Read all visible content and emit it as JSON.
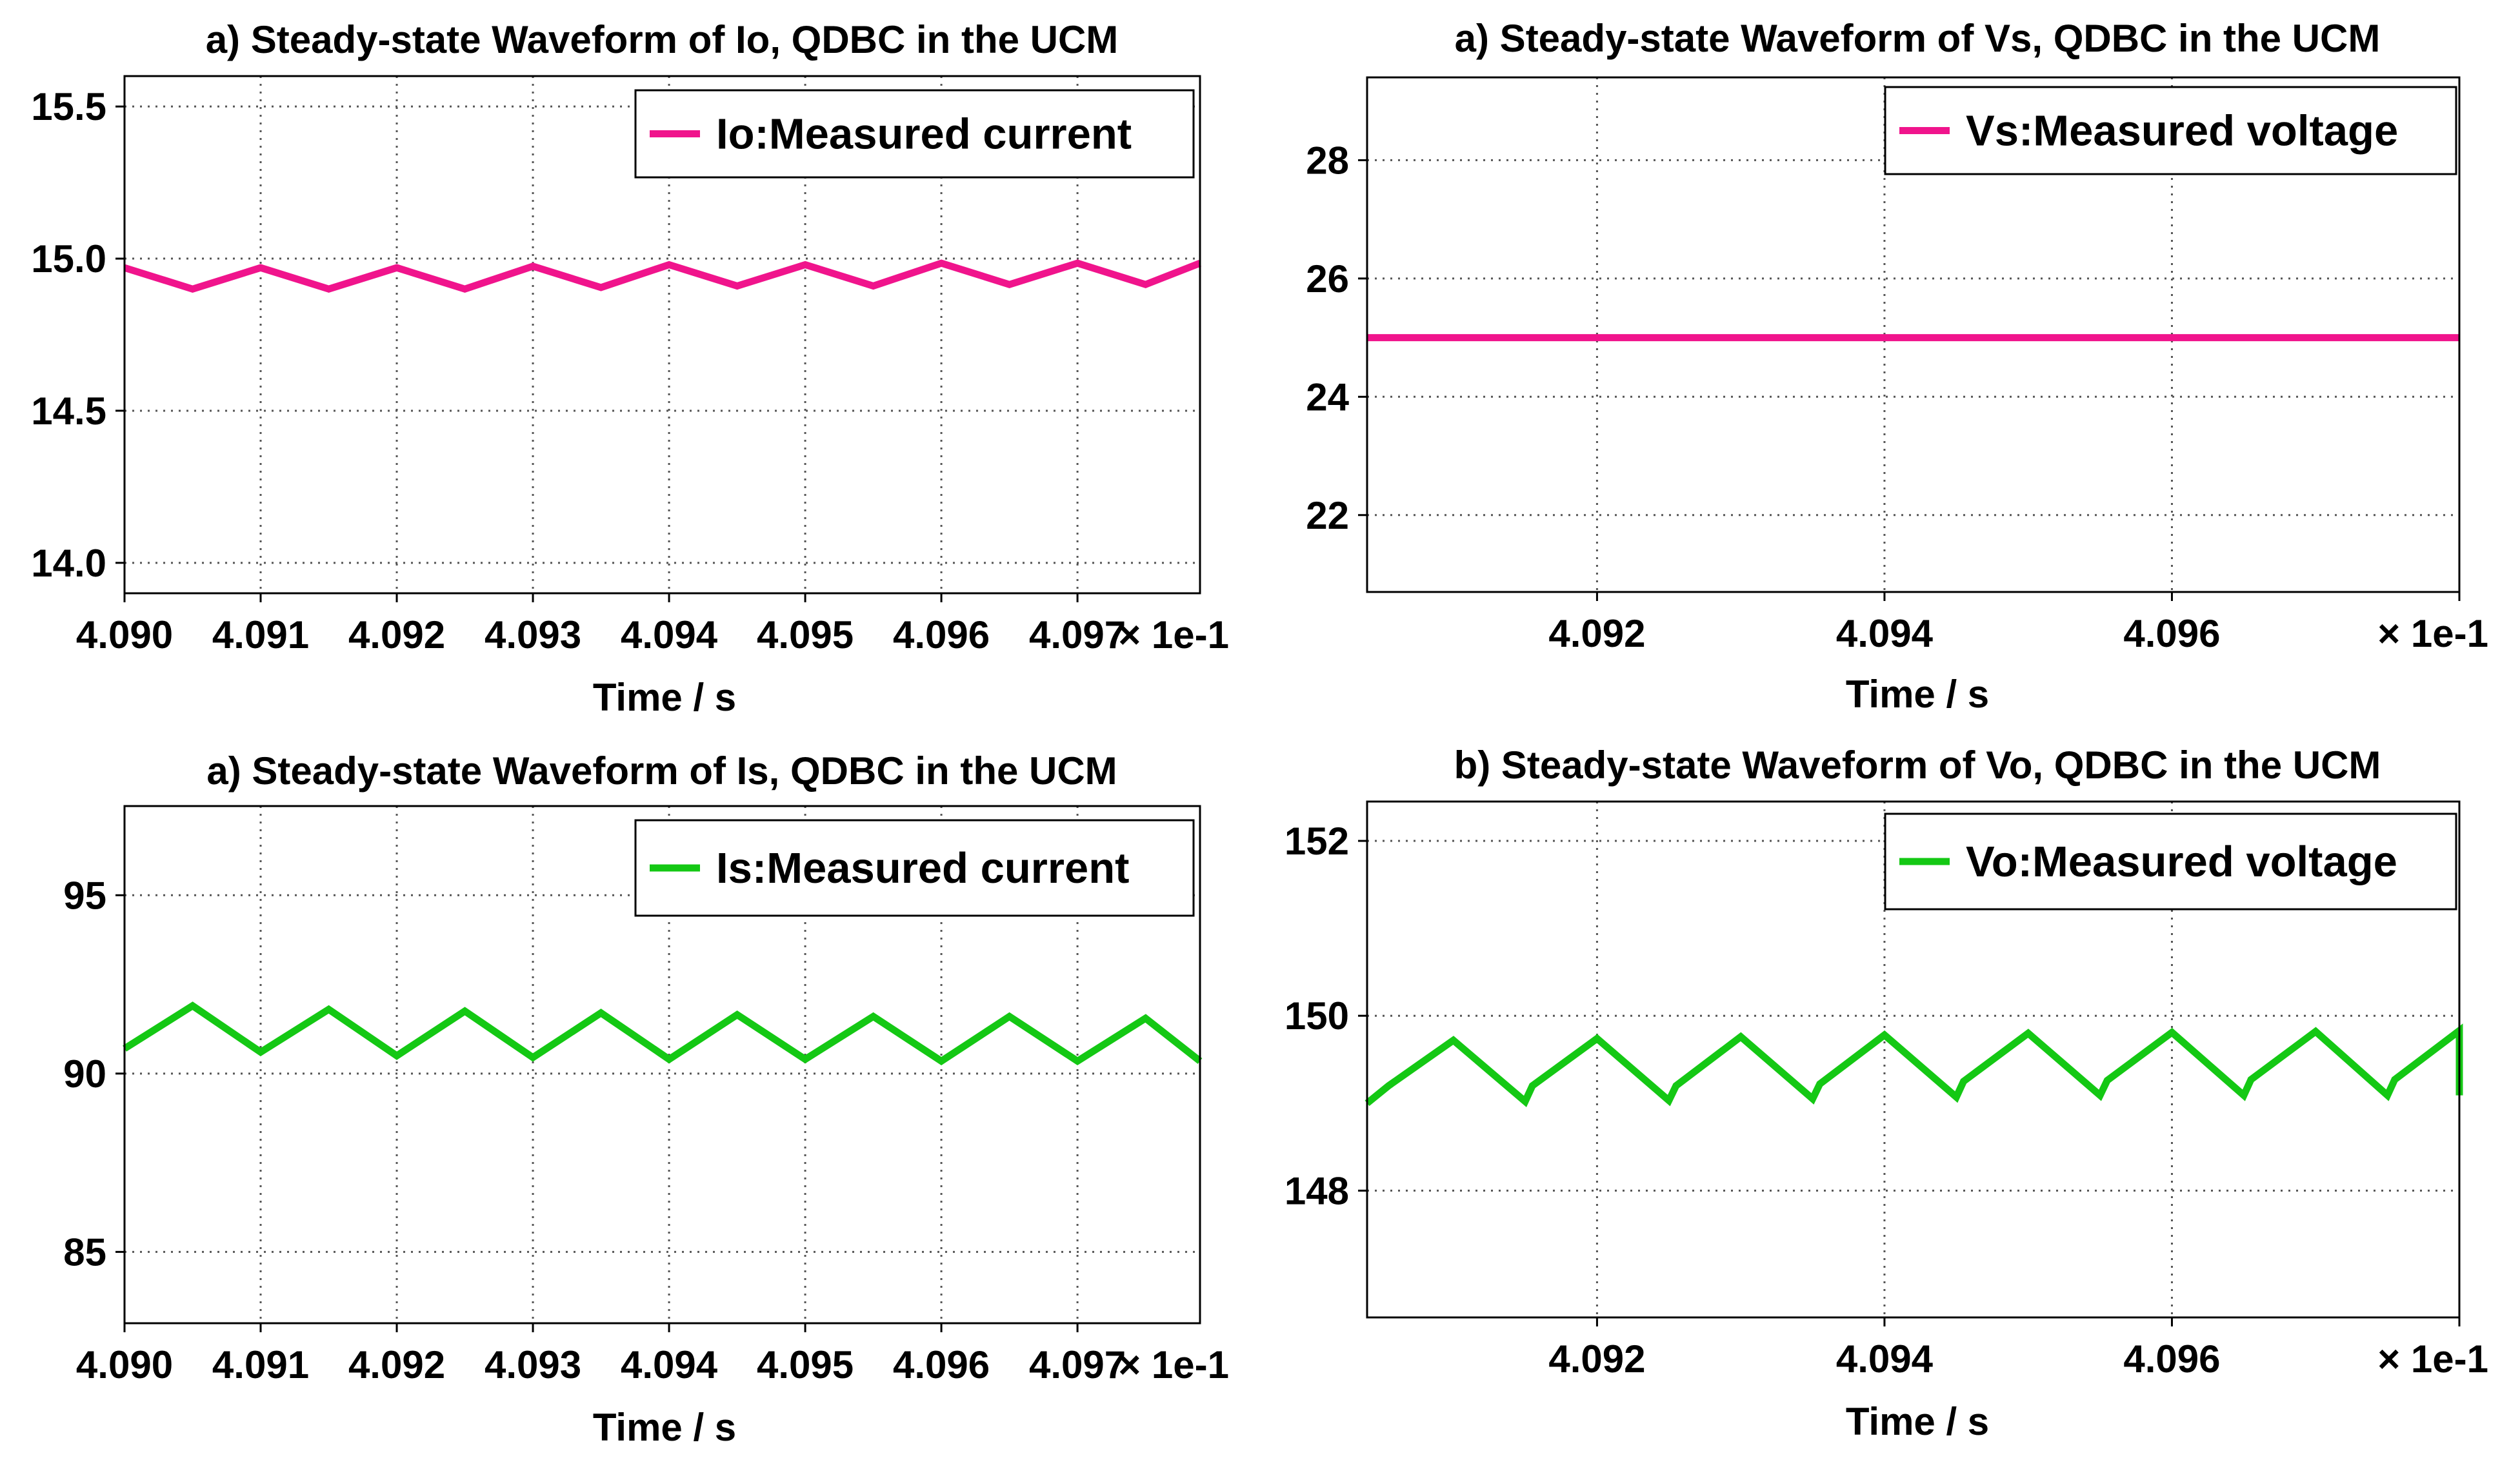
{
  "chart_data": [
    {
      "type": "line",
      "title": "a) Steady-state Waveform of Io, QDBC in the  UCM",
      "xlabel": "Time / s",
      "ylabel": "",
      "x_multiplier": "× 1e-1",
      "xlim": [
        4.09,
        4.0979
      ],
      "ylim": [
        13.9,
        15.6
      ],
      "xticks": [
        4.09,
        4.091,
        4.092,
        4.093,
        4.094,
        4.095,
        4.096,
        4.097
      ],
      "xtick_labels": [
        "4.090",
        "4.091",
        "4.092",
        "4.093",
        "4.094",
        "4.095",
        "4.096",
        "4.097"
      ],
      "yticks": [
        14.0,
        14.5,
        15.0,
        15.5
      ],
      "ytick_labels": [
        "14.0",
        "14.5",
        "15.0",
        "15.5"
      ],
      "grid": true,
      "legend_position": "top-right",
      "series": [
        {
          "name": "Io:Measured current",
          "color": "#f0148c",
          "x": [
            4.09,
            4.0905,
            4.091,
            4.0915,
            4.092,
            4.0925,
            4.093,
            4.0935,
            4.094,
            4.0945,
            4.095,
            4.0955,
            4.096,
            4.0965,
            4.097,
            4.0975,
            4.0979
          ],
          "y": [
            14.97,
            14.9,
            14.97,
            14.9,
            14.97,
            14.9,
            14.975,
            14.905,
            14.98,
            14.91,
            14.98,
            14.91,
            14.985,
            14.915,
            14.985,
            14.915,
            14.985
          ]
        }
      ]
    },
    {
      "type": "line",
      "title": "a) Steady-state Waveform of Vs, QDBC in the  UCM",
      "xlabel": "Time / s",
      "ylabel": "",
      "x_multiplier": "× 1e-1",
      "xlim": [
        4.0904,
        4.098
      ],
      "ylim": [
        20.7,
        29.4
      ],
      "xticks": [
        4.092,
        4.094,
        4.096,
        4.098
      ],
      "xtick_labels": [
        "4.092",
        "4.094",
        "4.096",
        ""
      ],
      "yticks": [
        22,
        24,
        26,
        28
      ],
      "ytick_labels": [
        "22",
        "24",
        "26",
        "28"
      ],
      "grid": true,
      "legend_position": "top-right",
      "series": [
        {
          "name": "Vs:Measured voltage",
          "color": "#f0148c",
          "x": [
            4.0904,
            4.098
          ],
          "y": [
            25.0,
            25.0
          ]
        }
      ]
    },
    {
      "type": "line",
      "title": "a) Steady-state Waveform of Is, QDBC in the  UCM",
      "xlabel": "Time / s",
      "ylabel": "",
      "x_multiplier": "× 1e-1",
      "xlim": [
        4.09,
        4.0979
      ],
      "ylim": [
        83.0,
        97.5
      ],
      "xticks": [
        4.09,
        4.091,
        4.092,
        4.093,
        4.094,
        4.095,
        4.096,
        4.097
      ],
      "xtick_labels": [
        "4.090",
        "4.091",
        "4.092",
        "4.093",
        "4.094",
        "4.095",
        "4.096",
        "4.097"
      ],
      "yticks": [
        85,
        90,
        95
      ],
      "ytick_labels": [
        "85",
        "90",
        "95"
      ],
      "grid": true,
      "legend_position": "top-right",
      "series": [
        {
          "name": "Is:Measured current",
          "color": "#14c814",
          "x": [
            4.09,
            4.0905,
            4.091,
            4.0915,
            4.092,
            4.0925,
            4.093,
            4.0935,
            4.094,
            4.0945,
            4.095,
            4.0955,
            4.096,
            4.0965,
            4.097,
            4.0975,
            4.0979
          ],
          "y": [
            90.7,
            91.9,
            90.6,
            91.8,
            90.5,
            91.75,
            90.45,
            91.7,
            90.4,
            91.65,
            90.4,
            91.6,
            90.35,
            91.6,
            90.35,
            91.55,
            90.35
          ]
        }
      ]
    },
    {
      "type": "line",
      "title": "b) Steady-state Waveform of Vo, QDBC in the  UCM",
      "xlabel": "Time / s",
      "ylabel": "",
      "x_multiplier": "× 1e-1",
      "xlim": [
        4.0904,
        4.098
      ],
      "ylim": [
        146.55,
        152.45
      ],
      "xticks": [
        4.092,
        4.094,
        4.096,
        4.098
      ],
      "xtick_labels": [
        "4.092",
        "4.094",
        "4.096",
        ""
      ],
      "yticks": [
        148,
        150,
        152
      ],
      "ytick_labels": [
        "148",
        "150",
        "152"
      ],
      "grid": true,
      "legend_position": "top-right",
      "series": [
        {
          "name": "Vo:Measured voltage",
          "color": "#14c814",
          "x": [
            4.0904,
            4.09055,
            4.091,
            4.0915,
            4.09155,
            4.092,
            4.0925,
            4.09255,
            4.093,
            4.0935,
            4.09355,
            4.094,
            4.0945,
            4.09455,
            4.095,
            4.0955,
            4.09555,
            4.096,
            4.0965,
            4.09655,
            4.097,
            4.0975,
            4.09755,
            4.098,
            4.098
          ],
          "y": [
            149.0,
            149.2,
            149.72,
            149.02,
            149.2,
            149.74,
            149.03,
            149.2,
            149.76,
            149.05,
            149.22,
            149.78,
            149.07,
            149.25,
            149.8,
            149.09,
            149.26,
            149.81,
            149.09,
            149.27,
            149.82,
            149.09,
            149.27,
            149.83,
            149.09
          ]
        }
      ]
    }
  ]
}
